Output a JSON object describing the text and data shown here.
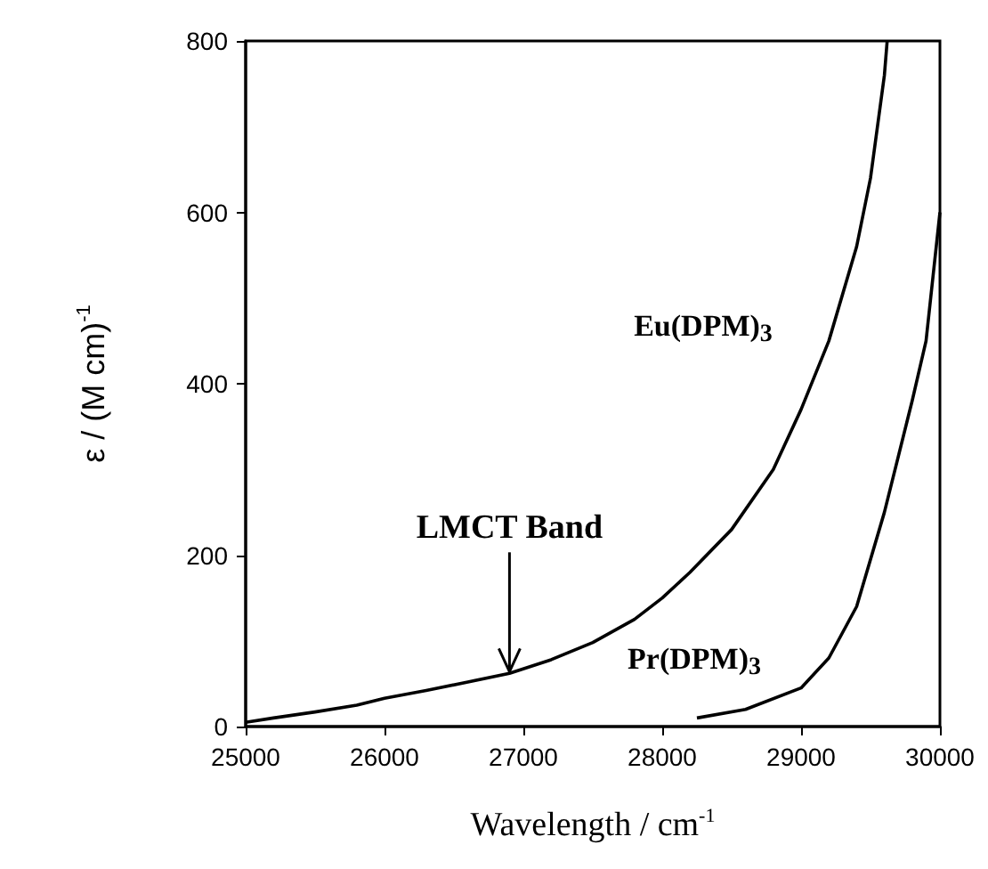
{
  "chart_data": {
    "type": "line",
    "xlabel": "Wavelength / cm$^{-1}$",
    "ylabel": "ε / (M cm)$^{-1}$",
    "series": [
      {
        "color": "#000000",
        "x": [
          25000,
          25200,
          25500,
          25800,
          26000,
          26300,
          26600,
          26900,
          27200,
          27500,
          27800,
          28000,
          28200,
          28500,
          28800,
          29000,
          29200,
          29400,
          29500,
          29600,
          29620
        ],
        "values": [
          5,
          10,
          17,
          25,
          33,
          42,
          52,
          62,
          78,
          98,
          125,
          150,
          180,
          230,
          300,
          370,
          450,
          560,
          640,
          760,
          800
        ]
      },
      {
        "color": "#000000",
        "x": [
          28250,
          28600,
          29000,
          29200,
          29400,
          29600,
          29800,
          29900,
          30000
        ],
        "values": [
          10,
          20,
          45,
          80,
          140,
          250,
          380,
          450,
          600
        ]
      }
    ],
    "annotations": [
      "Eu(DPM)$_{3}$",
      "Pr(DPM)$_{3}$",
      {
        "text": "LMCT Band",
        "x": 26900,
        "y": 62
      }
    ],
    "xlim": [
      25000,
      30000
    ],
    "xticks": [
      25000,
      26000,
      27000,
      28000,
      29000,
      30000
    ],
    "ylim": [
      0,
      800
    ],
    "yticks": [
      0,
      200,
      400,
      600,
      800
    ],
    "grid": false,
    "marker": "none",
    "line_style": "solid"
  }
}
